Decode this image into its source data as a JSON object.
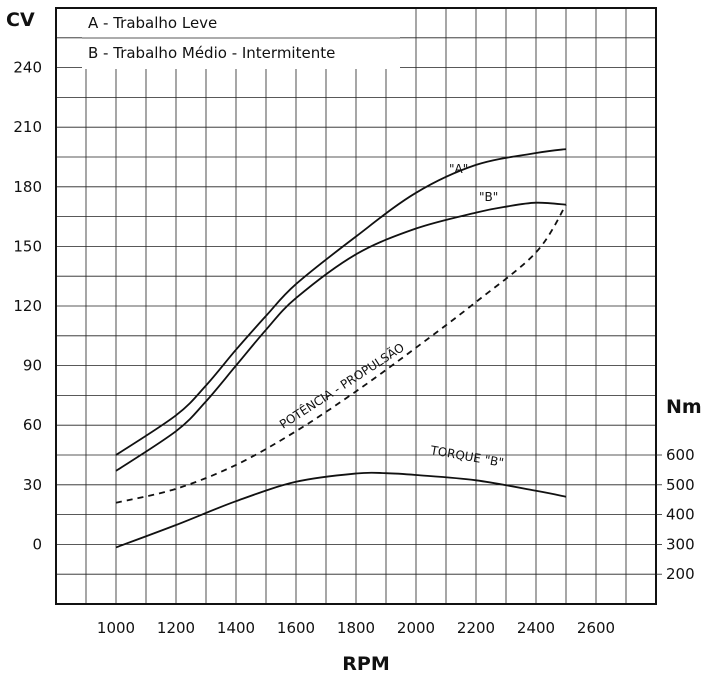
{
  "chart_data": {
    "type": "line",
    "xlabel": "RPM",
    "ylabel": "CV",
    "y2label": "Nm",
    "xlim": [
      800,
      2800
    ],
    "ylim": [
      -30,
      270
    ],
    "x_ticks": [
      1000,
      1200,
      1400,
      1600,
      1800,
      2000,
      2200,
      2400,
      2600
    ],
    "y_ticks": [
      0,
      30,
      60,
      90,
      120,
      150,
      180,
      210,
      240
    ],
    "y2_ticks": [
      200,
      300,
      400,
      500,
      600
    ],
    "y2_scale": {
      "at_200": -15,
      "at_600": 45
    },
    "grid": true,
    "legend": {
      "placement": "top-left",
      "entries": [
        "A - Trabalho Leve",
        "B - Trabalho Médio - Intermitente"
      ]
    },
    "series": [
      {
        "name": "\"A\"",
        "style": "solid",
        "x": [
          1000,
          1200,
          1300,
          1400,
          1500,
          1600,
          1800,
          2000,
          2200,
          2400,
          2500
        ],
        "y": [
          45,
          65,
          80,
          98,
          115,
          131,
          155,
          177,
          191,
          197,
          199
        ]
      },
      {
        "name": "\"B\"",
        "style": "solid",
        "x": [
          1000,
          1200,
          1300,
          1400,
          1500,
          1600,
          1800,
          2000,
          2200,
          2300,
          2400,
          2500
        ],
        "y": [
          37,
          57,
          72,
          90,
          108,
          124,
          146,
          159,
          167,
          170,
          172,
          171
        ]
      },
      {
        "name": "POTÊNCIA - PROPULSÃO",
        "style": "dashed",
        "x": [
          1000,
          1200,
          1400,
          1600,
          1800,
          2000,
          2200,
          2400,
          2500
        ],
        "y": [
          21,
          28,
          40,
          57,
          77,
          99,
          122,
          147,
          171
        ]
      },
      {
        "name": "TORQUE \"B\"",
        "axis": "right",
        "style": "solid",
        "x": [
          1000,
          1200,
          1400,
          1600,
          1800,
          1900,
          2000,
          2200,
          2400,
          2500
        ],
        "y": [
          290,
          365,
          445,
          510,
          538,
          539,
          533,
          515,
          480,
          460
        ]
      }
    ]
  }
}
